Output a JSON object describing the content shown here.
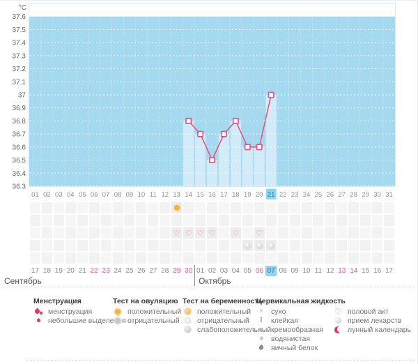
{
  "chart_data": {
    "type": "line",
    "title": "",
    "ylabel": "°C",
    "ylim": [
      36.3,
      37.7
    ],
    "y_ticks": [
      "37.6",
      "37.5",
      "37.4",
      "37.3",
      "37.2",
      "37.1",
      "37",
      "36.9",
      "36.8",
      "36.7",
      "36.6",
      "36.5",
      "36.4",
      "36.3"
    ],
    "x_days": [
      "01",
      "02",
      "03",
      "04",
      "05",
      "06",
      "07",
      "08",
      "09",
      "10",
      "11",
      "12",
      "13",
      "14",
      "15",
      "16",
      "17",
      "18",
      "19",
      "20",
      "21",
      "22",
      "23",
      "24",
      "25",
      "26",
      "27",
      "28",
      "29",
      "30",
      "31"
    ],
    "highlighted_day_index": 20,
    "series": [
      {
        "name": "basal-temperature",
        "x": [
          14,
          15,
          16,
          17,
          18,
          19,
          20,
          21
        ],
        "y": [
          36.8,
          36.7,
          36.5,
          36.7,
          36.8,
          36.6,
          36.6,
          37.0
        ]
      }
    ],
    "marker": "square",
    "area_columns": true,
    "grid": "dashed-white"
  },
  "colors": {
    "plot_bg": "#a5d9ef",
    "column_fill": "#d2ebf9",
    "line": "#e75480",
    "marker_fill": "#ffffff",
    "highlight_day_bg": "#87d7f5",
    "weekend_date": "#f2598f",
    "axis_text": "#8f8f8f"
  },
  "events": {
    "ovulation_test_positive_days": [
      13
    ],
    "intercourse_days": [
      13,
      14,
      15,
      16,
      18,
      20
    ],
    "medication_days": [
      19,
      20,
      21
    ]
  },
  "calendar": {
    "dates": [
      "17",
      "18",
      "19",
      "20",
      "21",
      "22",
      "23",
      "24",
      "25",
      "26",
      "27",
      "28",
      "29",
      "30",
      "01",
      "02",
      "03",
      "04",
      "05",
      "06",
      "07",
      "08",
      "09",
      "10",
      "11",
      "12",
      "13",
      "14",
      "15",
      "16",
      "17"
    ],
    "pink_indices": [
      5,
      6,
      12,
      13,
      19,
      26,
      27
    ],
    "today_index": 20,
    "month_divider_index": 14,
    "months": [
      {
        "label": "Сентябрь"
      },
      {
        "label": "Октябрь"
      }
    ]
  },
  "legend": {
    "columns": [
      {
        "header": "Менструация",
        "items": [
          {
            "icon": "blood-drops-icon",
            "label": "менструация"
          },
          {
            "icon": "small-drop-icon",
            "label": "небольшие выделения"
          }
        ]
      },
      {
        "header": "Тест на овуляцию",
        "items": [
          {
            "icon": "ovulation-positive-icon",
            "label": "положительный"
          },
          {
            "icon": "ovulation-negative-icon",
            "label": "отрицательный"
          }
        ]
      },
      {
        "header": "Тест на беременность",
        "items": [
          {
            "icon": "pregnancy-positive-icon",
            "label": "положительный"
          },
          {
            "icon": "pregnancy-negative-icon",
            "label": "отрицательный"
          },
          {
            "icon": "pregnancy-weak-icon",
            "label": "слабоположительный"
          }
        ]
      },
      {
        "header": "Цервикальная жидкость",
        "items": [
          {
            "icon": "dry-icon",
            "label": "сухо",
            "glyph": "×"
          },
          {
            "icon": "sticky-icon",
            "label": "клейкая",
            "glyph": "I"
          },
          {
            "icon": "creamy-icon",
            "label": "кремообразная"
          },
          {
            "icon": "watery-icon",
            "label": "водянистая"
          },
          {
            "icon": "eggwhite-icon",
            "label": "яичный белок"
          }
        ]
      },
      {
        "header": "",
        "items": [
          {
            "icon": "intercourse-heart-icon",
            "label": "половой акт",
            "glyph": "♡"
          },
          {
            "icon": "medication-pill-icon",
            "label": "прием лекарств"
          },
          {
            "icon": "lunar-calendar-icon",
            "label": "лунный календарь"
          }
        ]
      }
    ]
  },
  "heart_glyph": "♡"
}
